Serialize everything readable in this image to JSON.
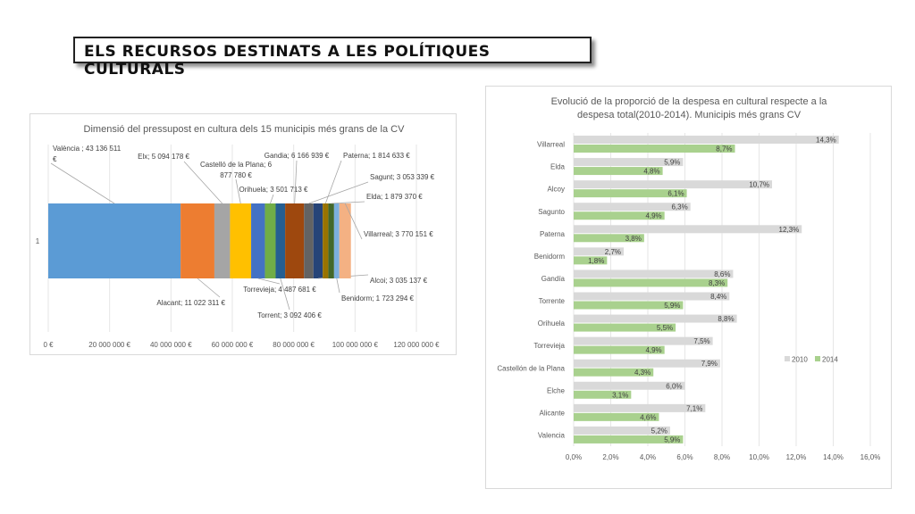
{
  "slide": {
    "title": "ELS RECURSOS DESTINATS A LES POLÍTIQUES CULTURALS"
  },
  "chart_data": [
    {
      "type": "bar",
      "orientation": "horizontal-stacked",
      "title": "Dimensió del pressupost en cultura dels 15 municipis més grans de la CV",
      "category": "1",
      "xlim": [
        0,
        120000000
      ],
      "x_ticks": [
        "0 €",
        "20 000 000 €",
        "40 000 000 €",
        "60 000 000 €",
        "80 000 000 €",
        "100 000 000 €",
        "120 000 000 €"
      ],
      "grid": true,
      "series": [
        {
          "name": "València",
          "value": 43136511,
          "color": "#5b9bd5",
          "label": [
            "València ; 43 136 511",
            "€"
          ]
        },
        {
          "name": "Alacant",
          "value": 11022311,
          "color": "#ed7d31",
          "label": [
            "Alacant; 11 022 311 €"
          ]
        },
        {
          "name": "Elx",
          "value": 5094178,
          "color": "#a5a5a5",
          "label": [
            "Elx; 5 094 178 €"
          ]
        },
        {
          "name": "Castelló de la Plana",
          "value": 6877780,
          "color": "#ffc000",
          "label": [
            "Castelló de la Plana; 6",
            "877 780 €"
          ]
        },
        {
          "name": "Torrevieja",
          "value": 4487681,
          "color": "#4472c4",
          "label": [
            "Torrevieja; 4 487 681 €"
          ]
        },
        {
          "name": "Orihuela",
          "value": 3501713,
          "color": "#70ad47",
          "label": [
            "Orihuela; 3 501 713 €"
          ]
        },
        {
          "name": "Torrent",
          "value": 3092406,
          "color": "#255e91",
          "label": [
            "Torrent; 3 092 406 €"
          ]
        },
        {
          "name": "Gandia",
          "value": 6166939,
          "color": "#9e480e",
          "label": [
            "Gandia; 6 166 939 €"
          ]
        },
        {
          "name": "Sagunt",
          "value": 3053339,
          "color": "#636363",
          "label": [
            "Sagunt; 3 053 339 €"
          ]
        },
        {
          "name": "Alcoi",
          "value": 3035137,
          "color": "#264478",
          "label": [
            "Alcoi; 3 035 137 €"
          ]
        },
        {
          "name": "Paterna",
          "value": 1814633,
          "color": "#997300",
          "label": [
            "Paterna; 1 814 633 €"
          ]
        },
        {
          "name": "Elda",
          "value": 1879370,
          "color": "#43682b",
          "label": [
            "Elda; 1 879 370 €"
          ]
        },
        {
          "name": "Benidorm",
          "value": 1723294,
          "color": "#7cafdd",
          "label": [
            "Benidorm; 1 723 294 €"
          ]
        },
        {
          "name": "Villarreal",
          "value": 3770151,
          "color": "#f4b183",
          "label": [
            "Villarreal; 3 770 151 €"
          ]
        }
      ]
    },
    {
      "type": "bar",
      "orientation": "horizontal-grouped",
      "title": "Evolució de la proporció de la despesa en cultural respecte a la despesa total(2010-2014). Municipis més grans CV",
      "categories": [
        "Villarreal",
        "Elda",
        "Alcoy",
        "Sagunto",
        "Paterna",
        "Benidorm",
        "Gandía",
        "Torrente",
        "Orihuela",
        "Torrevieja",
        "Castellón de la Plana",
        "Elche",
        "Alicante",
        "Valencia"
      ],
      "xlim": [
        0,
        16
      ],
      "x_ticks": [
        "0,0%",
        "2,0%",
        "4,0%",
        "6,0%",
        "8,0%",
        "10,0%",
        "12,0%",
        "14,0%",
        "16,0%"
      ],
      "grid": true,
      "legend_position": "right",
      "series": [
        {
          "name": "2010",
          "color": "#d9d9d9",
          "values": [
            14.3,
            5.9,
            10.7,
            6.3,
            12.3,
            2.7,
            8.6,
            8.4,
            8.8,
            7.5,
            7.9,
            6.0,
            7.1,
            5.2
          ],
          "labels": [
            "14,3%",
            "5,9%",
            "10,7%",
            "6,3%",
            "12,3%",
            "2,7%",
            "8,6%",
            "8,4%",
            "8,8%",
            "7,5%",
            "7,9%",
            "6,0%",
            "7,1%",
            "5,2%"
          ]
        },
        {
          "name": "2014",
          "color": "#a9d18e",
          "values": [
            8.7,
            4.8,
            6.1,
            4.9,
            3.8,
            1.8,
            8.3,
            5.9,
            5.5,
            4.9,
            4.3,
            3.1,
            4.6,
            5.9
          ],
          "labels": [
            "8,7%",
            "4,8%",
            "6,1%",
            "4,9%",
            "3,8%",
            "1,8%",
            "8,3%",
            "5,9%",
            "5,5%",
            "4,9%",
            "4,3%",
            "3,1%",
            "4,6%",
            "5,9%"
          ]
        }
      ]
    }
  ]
}
